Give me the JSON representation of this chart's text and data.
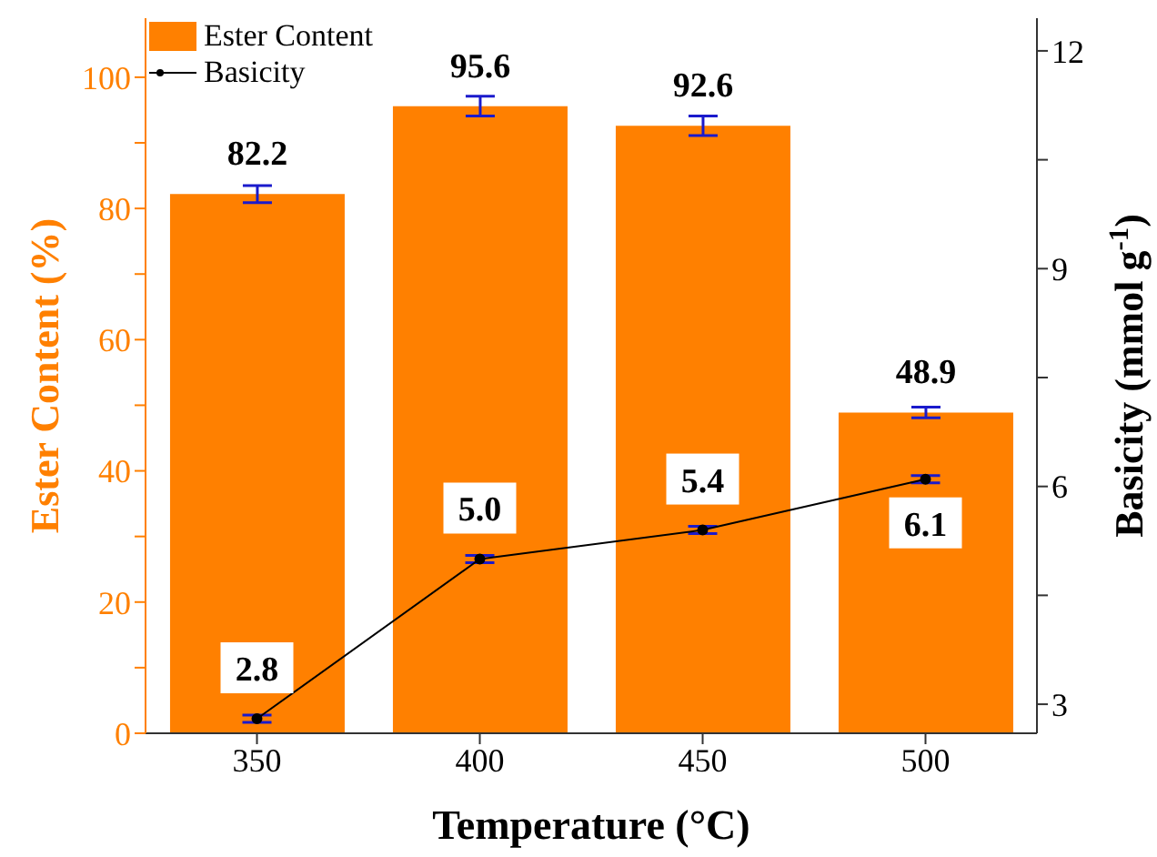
{
  "chart_data": {
    "type": "bar",
    "xlabel": "Temperature (°C)",
    "ylabel": "Ester Content (%)",
    "y2label": "Basicity (mmol g$^{-1}$)",
    "categories": [
      "350",
      "400",
      "450",
      "500"
    ],
    "series": [
      {
        "name": "Ester Content",
        "color": "#ff8000",
        "values": [
          82.2,
          95.6,
          92.6,
          48.9
        ],
        "errors": [
          1.3,
          1.5,
          1.5,
          0.8
        ],
        "value_labels": [
          "82.2",
          "95.6",
          "92.6",
          "48.9"
        ]
      },
      {
        "name": "Basicity",
        "type": "line",
        "axis": "y2",
        "color": "#000000",
        "values": [
          2.8,
          5.0,
          5.4,
          6.1
        ],
        "errors": [
          0.05,
          0.05,
          0.05,
          0.05
        ],
        "value_labels": [
          "2.8",
          "5.0",
          "5.4",
          "6.1"
        ]
      }
    ],
    "ylim": [
      0,
      109
    ],
    "yticks": [
      0,
      {
        "value": 10,
        "label": null
      },
      20,
      {
        "value": 30,
        "label": null
      },
      40,
      {
        "value": 50,
        "label": null
      },
      60,
      {
        "value": 70,
        "label": null
      },
      80,
      {
        "value": 90,
        "label": null
      },
      100
    ],
    "y2lim": [
      2.6,
      12.45
    ],
    "y2ticks": [
      3,
      {
        "value": 4.5,
        "label": null
      },
      6,
      {
        "value": 7.5,
        "label": null
      },
      9,
      {
        "value": 10.5,
        "label": null
      },
      12
    ],
    "legend": "top left",
    "grid": false,
    "marker": "circle"
  }
}
